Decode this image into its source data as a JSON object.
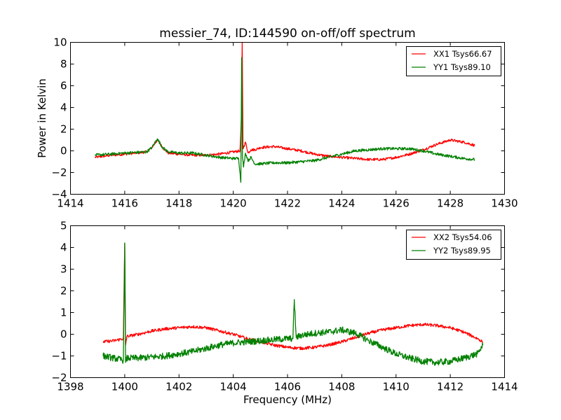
{
  "chart_data": [
    {
      "type": "line",
      "title": "messier_74, ID:144590 on-off/off spectrum",
      "xlabel": "",
      "ylabel": "Power in Kelvin",
      "xlim": [
        1414,
        1430
      ],
      "ylim": [
        -4,
        10
      ],
      "xticks": [
        "1414",
        "1416",
        "1418",
        "1420",
        "1422",
        "1424",
        "1426",
        "1428",
        "1430"
      ],
      "yticks": [
        "−4",
        "−2",
        "0",
        "2",
        "4",
        "6",
        "8",
        "10"
      ],
      "xtick_values": [
        1414,
        1416,
        1418,
        1420,
        1422,
        1424,
        1426,
        1428,
        1430
      ],
      "ytick_values": [
        -4,
        -2,
        0,
        2,
        4,
        6,
        8,
        10
      ],
      "grid": false,
      "legend_position": "top-right",
      "series": [
        {
          "name": "XX1 Tsys66.67",
          "color": "#ff0000",
          "x": [
            1414.9,
            1415.5,
            1416.0,
            1416.8,
            1417.0,
            1417.2,
            1417.4,
            1417.6,
            1418.0,
            1418.5,
            1419.0,
            1419.5,
            1420.0,
            1420.25,
            1420.3,
            1420.33,
            1420.36,
            1420.45,
            1420.55,
            1420.65,
            1420.8,
            1421.0,
            1421.5,
            1422.0,
            1422.5,
            1423.0,
            1423.5,
            1424.0,
            1424.5,
            1425.0,
            1425.5,
            1426.0,
            1426.5,
            1427.0,
            1427.5,
            1428.0,
            1428.5,
            1428.9
          ],
          "y": [
            -0.6,
            -0.4,
            -0.3,
            -0.1,
            0.3,
            1.0,
            0.3,
            -0.2,
            -0.3,
            -0.4,
            -0.4,
            -0.3,
            -0.1,
            0.0,
            3.0,
            10.0,
            0.2,
            0.8,
            -0.2,
            0.1,
            0.1,
            0.3,
            0.4,
            0.2,
            0.0,
            -0.3,
            -0.5,
            -0.6,
            -0.7,
            -0.8,
            -0.8,
            -0.6,
            -0.3,
            0.1,
            0.6,
            1.0,
            0.8,
            0.5
          ],
          "noise": 0.12
        },
        {
          "name": "YY1 Tsys89.10",
          "color": "#008000",
          "x": [
            1414.9,
            1415.5,
            1416.0,
            1416.8,
            1417.0,
            1417.2,
            1417.4,
            1417.6,
            1418.0,
            1418.5,
            1419.0,
            1419.5,
            1420.0,
            1420.2,
            1420.28,
            1420.31,
            1420.34,
            1420.38,
            1420.45,
            1420.55,
            1420.65,
            1420.8,
            1421.0,
            1421.5,
            1422.0,
            1422.5,
            1423.0,
            1423.5,
            1424.0,
            1424.5,
            1425.0,
            1425.5,
            1426.0,
            1426.5,
            1427.0,
            1427.5,
            1428.0,
            1428.5,
            1428.9
          ],
          "y": [
            -0.4,
            -0.3,
            -0.2,
            -0.1,
            0.3,
            1.1,
            0.3,
            -0.1,
            -0.2,
            -0.2,
            -0.4,
            -0.6,
            -0.7,
            -0.7,
            -2.9,
            8.6,
            -0.6,
            -1.5,
            -0.2,
            -0.9,
            -0.6,
            -1.2,
            -1.2,
            -1.1,
            -1.1,
            -1.0,
            -0.9,
            -0.6,
            -0.3,
            0.0,
            0.1,
            0.2,
            0.2,
            0.2,
            0.0,
            -0.3,
            -0.5,
            -0.7,
            -0.8
          ],
          "noise": 0.13
        }
      ]
    },
    {
      "type": "line",
      "title": "",
      "xlabel": "Frequency (MHz)",
      "ylabel": "",
      "xlim": [
        1398,
        1414
      ],
      "ylim": [
        -2,
        5
      ],
      "xticks": [
        "1398",
        "1400",
        "1402",
        "1404",
        "1406",
        "1408",
        "1410",
        "1412",
        "1414"
      ],
      "yticks": [
        "−2",
        "−1",
        "0",
        "1",
        "2",
        "3",
        "4",
        "5"
      ],
      "xtick_values": [
        1398,
        1400,
        1402,
        1404,
        1406,
        1408,
        1410,
        1412,
        1414
      ],
      "ytick_values": [
        -2,
        -1,
        0,
        1,
        2,
        3,
        4,
        5
      ],
      "grid": false,
      "legend_position": "top-right",
      "series": [
        {
          "name": "XX2 Tsys54.06",
          "color": "#ff0000",
          "x": [
            1399.2,
            1399.6,
            1399.95,
            1400.0,
            1400.03,
            1400.08,
            1400.5,
            1401.0,
            1401.5,
            1402.0,
            1402.5,
            1403.0,
            1403.5,
            1404.0,
            1404.5,
            1405.0,
            1405.5,
            1406.0,
            1406.5,
            1407.0,
            1407.5,
            1408.0,
            1408.5,
            1409.0,
            1409.5,
            1410.0,
            1410.5,
            1411.0,
            1411.5,
            1412.0,
            1412.5,
            1413.0,
            1413.2
          ],
          "y": [
            -0.35,
            -0.3,
            -0.2,
            4.2,
            -0.5,
            -0.1,
            0.0,
            0.15,
            0.25,
            0.3,
            0.35,
            0.3,
            0.15,
            0.0,
            -0.2,
            -0.35,
            -0.5,
            -0.6,
            -0.65,
            -0.6,
            -0.5,
            -0.35,
            -0.15,
            0.05,
            0.2,
            0.3,
            0.4,
            0.45,
            0.4,
            0.3,
            0.1,
            -0.2,
            -0.35
          ],
          "noise": 0.07
        },
        {
          "name": "YY2 Tsys89.95",
          "color": "#008000",
          "x": [
            1399.2,
            1399.6,
            1399.95,
            1400.0,
            1400.03,
            1400.08,
            1400.5,
            1401.0,
            1401.5,
            1402.0,
            1402.5,
            1403.0,
            1403.5,
            1404.0,
            1404.5,
            1405.0,
            1405.5,
            1406.0,
            1406.2,
            1406.25,
            1406.32,
            1406.5,
            1407.0,
            1407.5,
            1408.0,
            1408.5,
            1409.0,
            1409.5,
            1410.0,
            1410.5,
            1411.0,
            1411.5,
            1412.0,
            1412.5,
            1413.0,
            1413.2
          ],
          "y": [
            -1.0,
            -1.1,
            -1.2,
            4.2,
            -1.3,
            -1.1,
            -1.1,
            -1.05,
            -1.0,
            -0.9,
            -0.8,
            -0.65,
            -0.5,
            -0.4,
            -0.35,
            -0.3,
            -0.25,
            -0.2,
            -0.2,
            1.6,
            -0.15,
            -0.05,
            0.05,
            0.1,
            0.2,
            0.05,
            -0.3,
            -0.6,
            -0.9,
            -1.1,
            -1.25,
            -1.3,
            -1.25,
            -1.1,
            -0.9,
            -0.5
          ],
          "noise": 0.15
        }
      ]
    }
  ]
}
